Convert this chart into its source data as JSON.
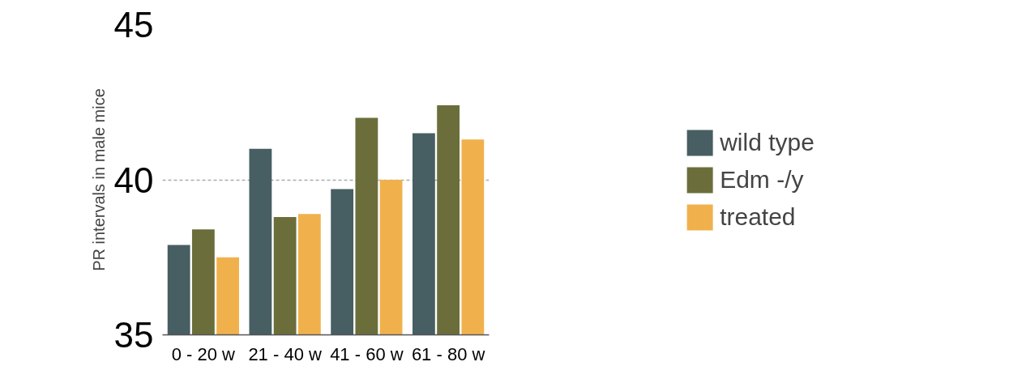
{
  "chart_data": {
    "type": "bar",
    "ylabel": "PR intervals in male mice",
    "categories": [
      "0 - 20 w",
      "21 - 40 w",
      "41 - 60 w",
      "61 - 80 w"
    ],
    "series": [
      {
        "name": "wild type",
        "color": "#475e62",
        "values": [
          37.9,
          41.0,
          39.7,
          41.5
        ]
      },
      {
        "name": "Edm -/y",
        "color": "#6b6e3a",
        "values": [
          38.4,
          38.8,
          42.0,
          42.4
        ]
      },
      {
        "name": "treated",
        "color": "#f0b14d",
        "values": [
          37.5,
          38.9,
          40.0,
          41.3
        ]
      }
    ],
    "ylim": [
      35,
      45
    ],
    "yticks": [
      35,
      40,
      45
    ],
    "grid": "y",
    "legend": "right"
  }
}
